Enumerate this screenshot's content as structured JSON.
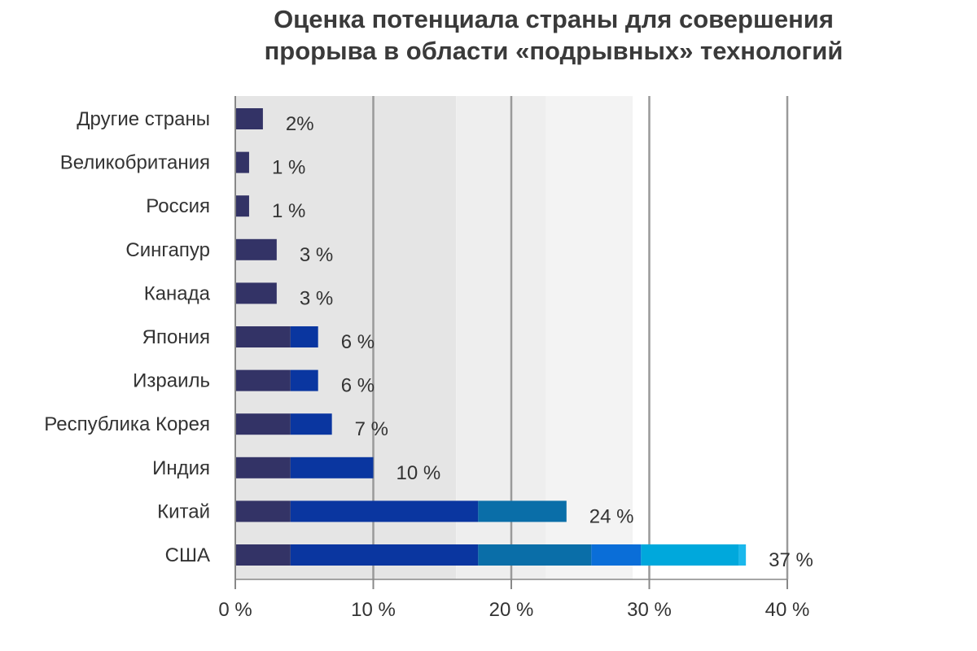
{
  "chart_data": {
    "type": "bar",
    "orientation": "horizontal",
    "title_lines": [
      "Оценка потенциала страны для совершения",
      "прорыва в области «подрывных» технологий"
    ],
    "categories": [
      "Другие страны",
      "Великобритания",
      "Россия",
      "Сингапур",
      "Канада",
      "Япония",
      "Израиль",
      "Республика Корея",
      "Индия",
      "Китай",
      "США"
    ],
    "values": [
      2,
      1,
      1,
      3,
      3,
      6,
      6,
      7,
      10,
      24,
      37
    ],
    "value_labels": [
      "2%",
      "1 %",
      "1 %",
      "3 %",
      "3 %",
      "6 %",
      "6 %",
      "7 %",
      "10 %",
      "24 %",
      "37 %"
    ],
    "x_ticks": [
      0,
      10,
      20,
      30,
      40
    ],
    "x_tick_labels": [
      "0 %",
      "10 %",
      "20 %",
      "30 %",
      "40 %"
    ],
    "xlim": [
      0,
      40
    ],
    "grid": true,
    "xlabel": "",
    "ylabel": "",
    "color_segments": [
      {
        "from": 0,
        "to": 4,
        "color": "#333366"
      },
      {
        "from": 4,
        "to": 17.6,
        "color": "#0a36a0"
      },
      {
        "from": 17.6,
        "to": 25.8,
        "color": "#0a6ea8"
      },
      {
        "from": 25.8,
        "to": 29.4,
        "color": "#0a6ed8"
      },
      {
        "from": 29.4,
        "to": 36.5,
        "color": "#00a8dc"
      },
      {
        "from": 36.5,
        "to": 40,
        "color": "#1ab8ec"
      }
    ],
    "background_bands": [
      {
        "from": 0,
        "to": 16,
        "color": "#e5e5e5"
      },
      {
        "from": 16,
        "to": 22.5,
        "color": "#eeeeee"
      },
      {
        "from": 22.5,
        "to": 28.8,
        "color": "#f3f3f3"
      },
      {
        "from": 28.8,
        "to": 40,
        "color": "#ffffff"
      }
    ],
    "colors": {
      "gridline": "#9a9a9a",
      "axis": "#888888"
    }
  }
}
